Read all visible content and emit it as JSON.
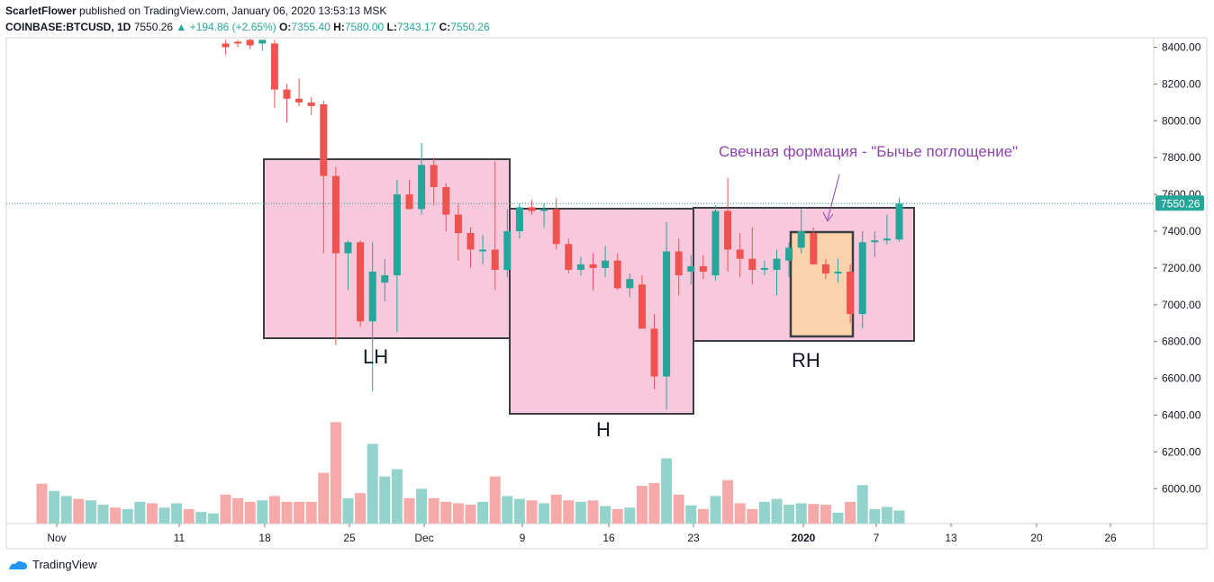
{
  "header": {
    "author": "ScarletFlower",
    "published": "published on TradingView.com, January 06, 2020 13:53:13 MSK",
    "symbol": "COINBASE:BTCUSD, 1D",
    "last": "7550.26",
    "change": "▲ +194.86 (+2.65%)",
    "o_label": "O:",
    "o": "7355.40",
    "h_label": "H:",
    "h": "7580.00",
    "l_label": "L:",
    "l": "7343.17",
    "c_label": "C:",
    "c": "7550.26"
  },
  "footer": {
    "brand": "TradingView"
  },
  "colors": {
    "up": "#26a69a",
    "down": "#ef5350",
    "vol_up": "#94d3cc",
    "vol_down": "#f5a9a8",
    "zone": "#f8c8dc",
    "zone_border": "#3d3d46",
    "engulf": "#fad3ac",
    "annotation": "#8e44ad",
    "price_line": "#26a69a"
  },
  "chart_data": {
    "type": "candlestick",
    "y_ticks": [
      "8400.00",
      "8200.00",
      "8000.00",
      "7800.00",
      "7600.00",
      "7400.00",
      "7200.00",
      "7000.00",
      "6800.00",
      "6600.00",
      "6400.00",
      "6200.00",
      "6000.00"
    ],
    "x_ticks": [
      "Nov",
      "11",
      "18",
      "25",
      "Dec",
      "9",
      "16",
      "23",
      "2020",
      "7",
      "13",
      "20",
      "26"
    ],
    "last_price_label": "7550.26",
    "pattern_labels": [
      "LH",
      "H",
      "RH"
    ],
    "annotation": "Свечная формация - \"Бычье поглощение\"",
    "candles": [
      {
        "o": 8420,
        "h": 8440,
        "l": 8360,
        "c": 8400,
        "v": 0.4
      },
      {
        "o": 8430,
        "h": 8440,
        "l": 8400,
        "c": 8420,
        "v": 0.35
      },
      {
        "o": 8440,
        "h": 8450,
        "l": 8390,
        "c": 8410,
        "v": 0.3
      },
      {
        "o": 8420,
        "h": 8430,
        "l": 8380,
        "c": 8440,
        "v": 0.32
      },
      {
        "o": 8420,
        "h": 8440,
        "l": 8070,
        "c": 8170,
        "v": 0.38
      },
      {
        "o": 8170,
        "h": 8200,
        "l": 7990,
        "c": 8120,
        "v": 0.3
      },
      {
        "o": 8120,
        "h": 8230,
        "l": 8080,
        "c": 8100,
        "v": 0.3
      },
      {
        "o": 8100,
        "h": 8130,
        "l": 8030,
        "c": 8080,
        "v": 0.3
      },
      {
        "o": 8090,
        "h": 8110,
        "l": 7280,
        "c": 7700,
        "v": 0.7
      },
      {
        "o": 7700,
        "h": 7750,
        "l": 6780,
        "c": 7280,
        "v": 1.4
      },
      {
        "o": 7280,
        "h": 7350,
        "l": 7080,
        "c": 7340,
        "v": 0.35
      },
      {
        "o": 7340,
        "h": 7350,
        "l": 6880,
        "c": 6910,
        "v": 0.42
      },
      {
        "o": 6910,
        "h": 7340,
        "l": 6530,
        "c": 7180,
        "v": 1.1
      },
      {
        "o": 7120,
        "h": 7250,
        "l": 7020,
        "c": 7160,
        "v": 0.65
      },
      {
        "o": 7160,
        "h": 7680,
        "l": 6850,
        "c": 7600,
        "v": 0.75
      },
      {
        "o": 7600,
        "h": 7680,
        "l": 7540,
        "c": 7520,
        "v": 0.35
      },
      {
        "o": 7520,
        "h": 7880,
        "l": 7490,
        "c": 7760,
        "v": 0.48
      },
      {
        "o": 7760,
        "h": 7800,
        "l": 7540,
        "c": 7640,
        "v": 0.35
      },
      {
        "o": 7640,
        "h": 7660,
        "l": 7400,
        "c": 7490,
        "v": 0.3
      },
      {
        "o": 7490,
        "h": 7550,
        "l": 7240,
        "c": 7390,
        "v": 0.28
      },
      {
        "o": 7390,
        "h": 7420,
        "l": 7200,
        "c": 7300,
        "v": 0.26
      },
      {
        "o": 7300,
        "h": 7380,
        "l": 7220,
        "c": 7300,
        "v": 0.3
      },
      {
        "o": 7300,
        "h": 7780,
        "l": 7080,
        "c": 7190,
        "v": 0.65
      },
      {
        "o": 7190,
        "h": 7520,
        "l": 7150,
        "c": 7400,
        "v": 0.38
      },
      {
        "o": 7400,
        "h": 7550,
        "l": 7360,
        "c": 7530,
        "v": 0.34
      },
      {
        "o": 7530,
        "h": 7570,
        "l": 7490,
        "c": 7510,
        "v": 0.32
      },
      {
        "o": 7510,
        "h": 7550,
        "l": 7420,
        "c": 7520,
        "v": 0.28
      },
      {
        "o": 7520,
        "h": 7580,
        "l": 7300,
        "c": 7330,
        "v": 0.4
      },
      {
        "o": 7330,
        "h": 7360,
        "l": 7170,
        "c": 7190,
        "v": 0.32
      },
      {
        "o": 7190,
        "h": 7260,
        "l": 7160,
        "c": 7220,
        "v": 0.3
      },
      {
        "o": 7220,
        "h": 7280,
        "l": 7080,
        "c": 7200,
        "v": 0.32
      },
      {
        "o": 7200,
        "h": 7320,
        "l": 7150,
        "c": 7240,
        "v": 0.24
      },
      {
        "o": 7240,
        "h": 7280,
        "l": 7080,
        "c": 7090,
        "v": 0.2
      },
      {
        "o": 7090,
        "h": 7170,
        "l": 7040,
        "c": 7140,
        "v": 0.22
      },
      {
        "o": 7110,
        "h": 7160,
        "l": 6890,
        "c": 6870,
        "v": 0.52
      },
      {
        "o": 6870,
        "h": 6950,
        "l": 6540,
        "c": 6610,
        "v": 0.56
      },
      {
        "o": 6610,
        "h": 7450,
        "l": 6430,
        "c": 7290,
        "v": 0.9
      },
      {
        "o": 7290,
        "h": 7360,
        "l": 7050,
        "c": 7160,
        "v": 0.4
      },
      {
        "o": 7180,
        "h": 7270,
        "l": 7110,
        "c": 7210,
        "v": 0.25
      },
      {
        "o": 7210,
        "h": 7270,
        "l": 7140,
        "c": 7180,
        "v": 0.2
      },
      {
        "o": 7160,
        "h": 7540,
        "l": 7130,
        "c": 7510,
        "v": 0.38
      },
      {
        "o": 7510,
        "h": 7690,
        "l": 7180,
        "c": 7300,
        "v": 0.6
      },
      {
        "o": 7300,
        "h": 7390,
        "l": 7150,
        "c": 7250,
        "v": 0.28
      },
      {
        "o": 7250,
        "h": 7420,
        "l": 7110,
        "c": 7190,
        "v": 0.2
      },
      {
        "o": 7190,
        "h": 7240,
        "l": 7160,
        "c": 7200,
        "v": 0.3
      },
      {
        "o": 7190,
        "h": 7300,
        "l": 7050,
        "c": 7250,
        "v": 0.34
      },
      {
        "o": 7240,
        "h": 7340,
        "l": 7150,
        "c": 7310,
        "v": 0.26
      },
      {
        "o": 7310,
        "h": 7520,
        "l": 7280,
        "c": 7400,
        "v": 0.28
      },
      {
        "o": 7390,
        "h": 7420,
        "l": 7220,
        "c": 7220,
        "v": 0.27
      },
      {
        "o": 7220,
        "h": 7250,
        "l": 7140,
        "c": 7170,
        "v": 0.26
      },
      {
        "o": 7170,
        "h": 7250,
        "l": 7120,
        "c": 7180,
        "v": 0.15
      },
      {
        "o": 7180,
        "h": 7220,
        "l": 6900,
        "c": 6950,
        "v": 0.3
      },
      {
        "o": 6950,
        "h": 7400,
        "l": 6870,
        "c": 7340,
        "v": 0.53
      },
      {
        "o": 7340,
        "h": 7400,
        "l": 7260,
        "c": 7350,
        "v": 0.2
      },
      {
        "o": 7350,
        "h": 7490,
        "l": 7330,
        "c": 7360,
        "v": 0.23
      },
      {
        "o": 7355,
        "h": 7580,
        "l": 7343,
        "c": 7550,
        "v": 0.18
      }
    ]
  }
}
